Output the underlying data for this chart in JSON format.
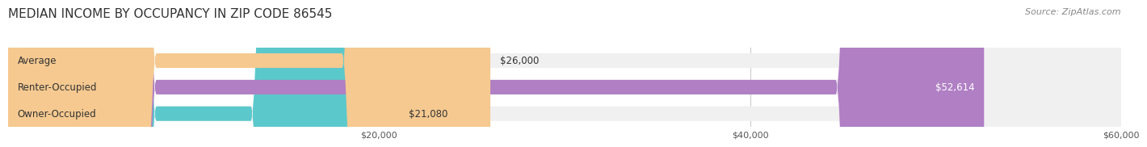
{
  "title": "MEDIAN INCOME BY OCCUPANCY IN ZIP CODE 86545",
  "source": "Source: ZipAtlas.com",
  "categories": [
    "Owner-Occupied",
    "Renter-Occupied",
    "Average"
  ],
  "values": [
    21080,
    52614,
    26000
  ],
  "bar_colors": [
    "#5bc8cc",
    "#b07fc4",
    "#f5c990"
  ],
  "bar_bg_color": "#f0f0f0",
  "label_colors": [
    "#333333",
    "#ffffff",
    "#333333"
  ],
  "xlim": [
    0,
    60000
  ],
  "xticks": [
    20000,
    40000,
    60000
  ],
  "xtick_labels": [
    "$20,000",
    "$40,000",
    "$60,000"
  ],
  "value_labels": [
    "$21,080",
    "$52,614",
    "$26,000"
  ],
  "title_fontsize": 11,
  "source_fontsize": 8,
  "bar_height": 0.55,
  "background_color": "#ffffff",
  "bar_label_fontsize": 8.5,
  "category_label_fontsize": 8.5
}
